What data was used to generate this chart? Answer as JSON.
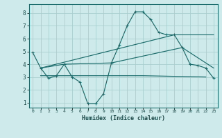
{
  "xlabel": "Humidex (Indice chaleur)",
  "bg_color": "#ceeaea",
  "grid_color": "#aacece",
  "line_color": "#1a6b6b",
  "x_ticks": [
    0,
    1,
    2,
    3,
    4,
    5,
    6,
    7,
    8,
    9,
    10,
    11,
    12,
    13,
    14,
    15,
    16,
    17,
    18,
    19,
    20,
    21,
    22,
    23
  ],
  "y_ticks": [
    1,
    2,
    3,
    4,
    5,
    6,
    7,
    8
  ],
  "ylim": [
    0.6,
    8.7
  ],
  "xlim": [
    -0.5,
    23.5
  ],
  "series1_x": [
    0,
    1,
    2,
    3,
    4,
    5,
    6,
    7,
    8,
    9,
    10,
    11,
    12,
    13,
    14,
    15,
    16,
    17,
    18,
    19,
    20,
    21,
    22,
    23
  ],
  "series1_y": [
    4.9,
    3.7,
    2.9,
    3.1,
    4.0,
    3.0,
    2.6,
    0.9,
    0.9,
    1.7,
    4.1,
    5.5,
    7.0,
    8.1,
    8.1,
    7.5,
    6.5,
    6.3,
    6.3,
    5.3,
    4.0,
    3.9,
    3.7,
    2.9
  ],
  "series2_x": [
    1,
    4,
    10,
    19,
    23
  ],
  "series2_y": [
    3.7,
    4.0,
    4.1,
    5.3,
    3.7
  ],
  "series3_x": [
    1,
    18,
    23
  ],
  "series3_y": [
    3.7,
    6.3,
    6.3
  ],
  "series4_x": [
    1,
    14,
    22
  ],
  "series4_y": [
    3.1,
    3.1,
    3.0
  ]
}
